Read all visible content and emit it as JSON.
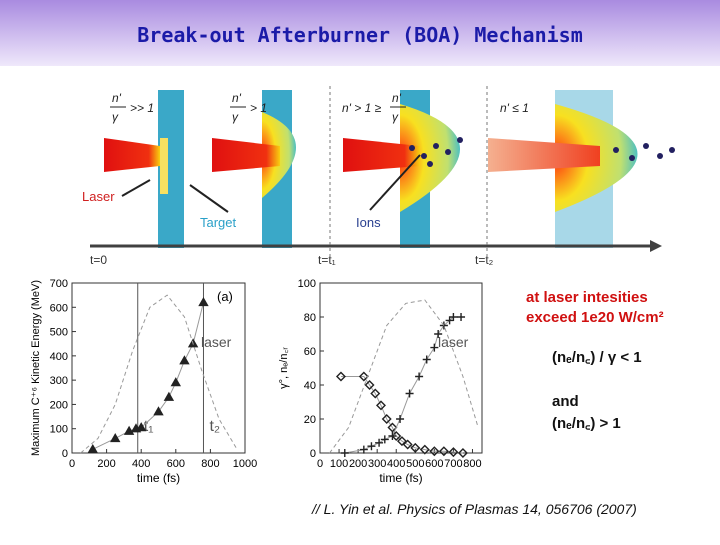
{
  "header": {
    "title": "Break-out Afterburner (BOA) Mechanism"
  },
  "diagram": {
    "panels": [
      {
        "numerator": "n'",
        "denominator": "γ",
        "relation": ">> 1"
      },
      {
        "numerator": "n'",
        "denominator": "γ",
        "relation": "> 1"
      },
      {
        "prefix": "n' > 1 ≥",
        "numerator": "n'",
        "denominator": "γ"
      },
      {
        "prefix": "n' ≤ 1"
      }
    ],
    "labels": {
      "laser": "Laser",
      "target": "Target",
      "ions": "Ions"
    },
    "timeline": [
      "t=0",
      "t=t₁",
      "t=t₂"
    ]
  },
  "chart_data": [
    {
      "type": "line",
      "xlabel": "time (fs)",
      "ylabel": "Maximum C⁺⁶ Kinetic Energy (MeV)",
      "panel_label": "(a)",
      "laser_label": "laser",
      "xlim": [
        0,
        1000
      ],
      "xticks": [
        0,
        200,
        400,
        600,
        800,
        1000
      ],
      "ylim": [
        0,
        700
      ],
      "yticks": [
        0,
        100,
        200,
        300,
        400,
        500,
        600,
        700
      ],
      "vlines": [
        {
          "x": 380,
          "label": "t₁"
        },
        {
          "x": 760,
          "label": "t₂"
        }
      ],
      "series": [
        {
          "marker": "triangle",
          "color": "#222222",
          "x": [
            120,
            250,
            330,
            370,
            400,
            500,
            560,
            600,
            650,
            700,
            760
          ],
          "values": [
            15,
            60,
            90,
            100,
            105,
            170,
            230,
            290,
            380,
            450,
            620
          ]
        },
        {
          "marker": "none",
          "dash": true,
          "color": "#999999",
          "x": [
            50,
            150,
            250,
            350,
            450,
            550,
            650,
            750,
            850,
            950
          ],
          "values": [
            0,
            60,
            200,
            420,
            600,
            650,
            560,
            340,
            140,
            20
          ]
        }
      ]
    },
    {
      "type": "line",
      "xlabel": "time (fs)",
      "ylabel": "γ°, nₑ/n꜀ᵣ",
      "laser_label": "laser",
      "xlim": [
        0,
        850
      ],
      "xticks": [
        0,
        100,
        200,
        300,
        400,
        500,
        600,
        700,
        800
      ],
      "ylim": [
        0,
        100
      ],
      "yticks": [
        0,
        20,
        40,
        60,
        80,
        100
      ],
      "vlines": [],
      "series": [
        {
          "marker": "diamond",
          "color": "#222222",
          "x": [
            110,
            230,
            260,
            290,
            320,
            350,
            380,
            400,
            430,
            460,
            500,
            550,
            600,
            650,
            700,
            750
          ],
          "values": [
            45,
            45,
            40,
            35,
            28,
            20,
            15,
            10,
            7,
            5,
            3,
            2,
            1,
            1,
            0.5,
            0
          ]
        },
        {
          "marker": "plus",
          "color": "#222222",
          "x": [
            130,
            230,
            270,
            310,
            340,
            380,
            420,
            470,
            520,
            560,
            600,
            620,
            650,
            680,
            700,
            740
          ],
          "values": [
            0,
            2,
            4,
            6,
            8,
            10,
            20,
            35,
            45,
            55,
            62,
            70,
            75,
            78,
            80,
            80
          ]
        },
        {
          "marker": "none",
          "dash": true,
          "color": "#999999",
          "x": [
            50,
            150,
            250,
            350,
            450,
            550,
            650,
            750,
            830
          ],
          "values": [
            0,
            15,
            45,
            75,
            88,
            90,
            75,
            45,
            15
          ]
        }
      ]
    }
  ],
  "notes": {
    "condition_intro": [
      "at laser intesities",
      "exceed 1e20 W/cm²"
    ],
    "conditions": [
      "(nₑ/n꜀) / γ < 1",
      "and",
      "(nₑ/n꜀) > 1"
    ]
  },
  "citation": "// L. Yin et al. Physics of Plasmas 14, 056706 (2007)"
}
